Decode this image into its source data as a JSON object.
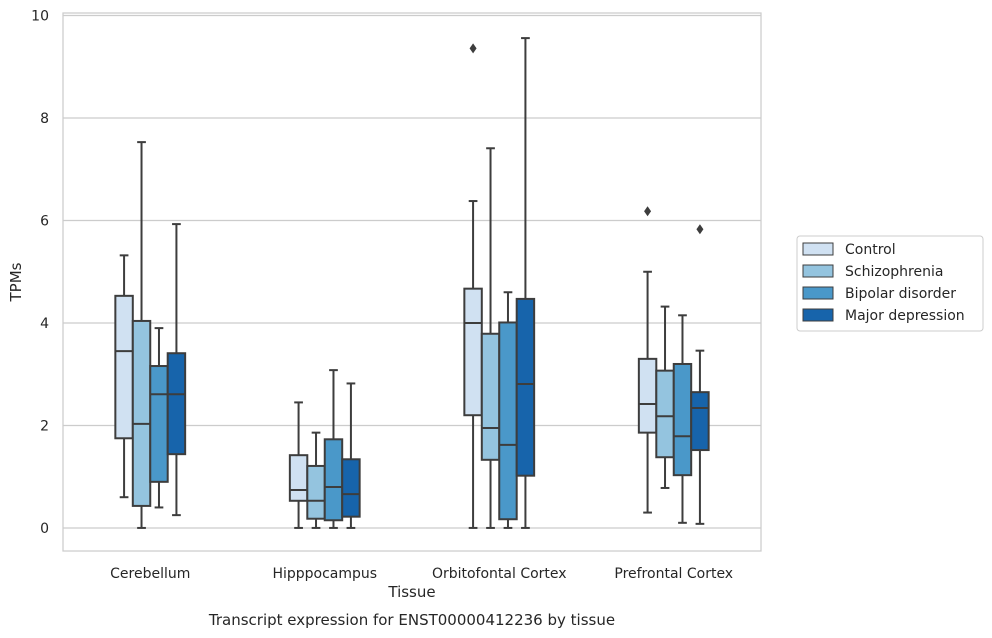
{
  "chart_data": {
    "type": "box",
    "title": "",
    "caption": "Transcript expression for ENST00000412236 by tissue",
    "xlabel": "Tissue",
    "ylabel": "TPMs",
    "ylim": [
      -0.45,
      10.05
    ],
    "yticks": [
      0,
      2,
      4,
      6,
      8,
      10
    ],
    "grid": "horizontal",
    "legend_position": "right",
    "categories": [
      "Cerebellum",
      "Hipppocampus",
      "Orbitofontal Cortex",
      "Prefrontal Cortex"
    ],
    "series": [
      {
        "name": "Control",
        "color": "#d0e1f2",
        "boxes": [
          {
            "whisker_low": 0.6,
            "q1": 1.75,
            "median": 3.45,
            "q3": 4.53,
            "whisker_high": 5.32,
            "outliers": []
          },
          {
            "whisker_low": 0.0,
            "q1": 0.53,
            "median": 0.74,
            "q3": 1.42,
            "whisker_high": 2.45,
            "outliers": []
          },
          {
            "whisker_low": 0.0,
            "q1": 2.2,
            "median": 4.0,
            "q3": 4.67,
            "whisker_high": 6.38,
            "outliers": [
              9.36
            ]
          },
          {
            "whisker_low": 0.3,
            "q1": 1.86,
            "median": 2.42,
            "q3": 3.3,
            "whisker_high": 5.0,
            "outliers": [
              6.18
            ]
          }
        ]
      },
      {
        "name": "Schizophrenia",
        "color": "#94c4df",
        "boxes": [
          {
            "whisker_low": 0.0,
            "q1": 0.43,
            "median": 2.03,
            "q3": 4.04,
            "whisker_high": 7.53,
            "outliers": []
          },
          {
            "whisker_low": 0.0,
            "q1": 0.18,
            "median": 0.53,
            "q3": 1.21,
            "whisker_high": 1.86,
            "outliers": []
          },
          {
            "whisker_low": 0.0,
            "q1": 1.33,
            "median": 1.95,
            "q3": 3.79,
            "whisker_high": 7.41,
            "outliers": []
          },
          {
            "whisker_low": 0.78,
            "q1": 1.38,
            "median": 2.18,
            "q3": 3.07,
            "whisker_high": 4.32,
            "outliers": []
          }
        ]
      },
      {
        "name": "Bipolar disorder",
        "color": "#4a98c9",
        "boxes": [
          {
            "whisker_low": 0.4,
            "q1": 0.9,
            "median": 2.61,
            "q3": 3.16,
            "whisker_high": 3.9,
            "outliers": []
          },
          {
            "whisker_low": 0.0,
            "q1": 0.15,
            "median": 0.8,
            "q3": 1.73,
            "whisker_high": 3.08,
            "outliers": []
          },
          {
            "whisker_low": 0.0,
            "q1": 0.17,
            "median": 1.62,
            "q3": 4.01,
            "whisker_high": 4.6,
            "outliers": []
          },
          {
            "whisker_low": 0.1,
            "q1": 1.03,
            "median": 1.79,
            "q3": 3.2,
            "whisker_high": 4.15,
            "outliers": []
          }
        ]
      },
      {
        "name": "Major depression",
        "color": "#1764ab",
        "boxes": [
          {
            "whisker_low": 0.25,
            "q1": 1.44,
            "median": 2.61,
            "q3": 3.41,
            "whisker_high": 5.93,
            "outliers": []
          },
          {
            "whisker_low": 0.0,
            "q1": 0.22,
            "median": 0.66,
            "q3": 1.34,
            "whisker_high": 2.82,
            "outliers": []
          },
          {
            "whisker_low": 0.0,
            "q1": 1.02,
            "median": 2.81,
            "q3": 4.47,
            "whisker_high": 9.56,
            "outliers": []
          },
          {
            "whisker_low": 0.08,
            "q1": 1.52,
            "median": 2.34,
            "q3": 2.65,
            "whisker_high": 3.46,
            "outliers": [
              5.83
            ]
          }
        ]
      }
    ]
  }
}
